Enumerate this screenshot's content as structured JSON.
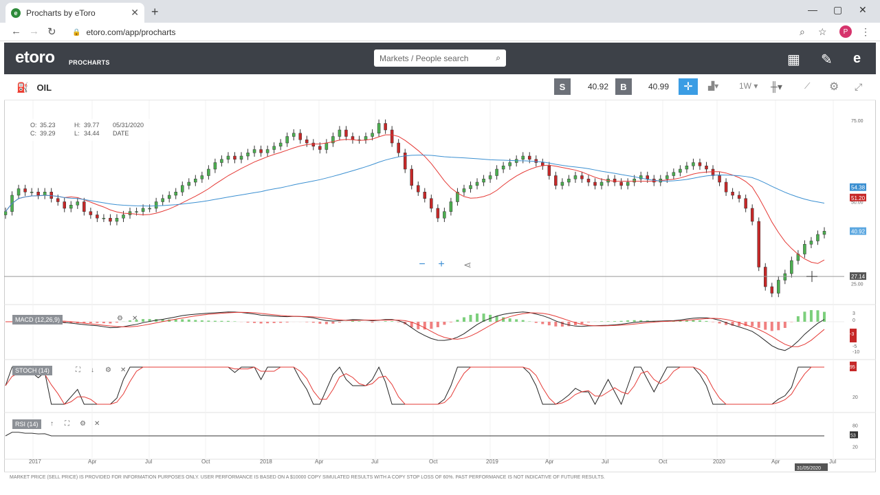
{
  "browser": {
    "tab_title": "Procharts by eToro",
    "url": "etoro.com/app/procharts",
    "avatar_letter": "P"
  },
  "app": {
    "logo": "etoro",
    "logo_sub": "PROCHARTS",
    "search_placeholder": "Markets / People search"
  },
  "toolbar": {
    "instrument": "OIL",
    "sell_label": "S",
    "sell_price": "40.92",
    "buy_label": "B",
    "buy_price": "40.99",
    "timeframe": "1W"
  },
  "ohlc": {
    "o_label": "O:",
    "o": "35.23",
    "h_label": "H:",
    "h": "39.77",
    "date": "05/31/2020",
    "c_label": "C:",
    "c": "39.29",
    "l_label": "L:",
    "l": "34.44",
    "date_label": "DATE"
  },
  "price_axis": {
    "ticks": [
      "75.00",
      "50.00",
      "25.00"
    ],
    "tag_blue": "54.38",
    "tag_red": "51.20",
    "tag_sell": "40.92",
    "tag_cursor": "27.14"
  },
  "indicators": {
    "macd": "MACD (12,26,9)",
    "macd_ticks": [
      "3",
      "0",
      "-5",
      "-10"
    ],
    "macd_tag": "-3",
    "stoch": "STOCH (14)",
    "stoch_ticks": [
      "20"
    ],
    "stoch_tag": "95",
    "rsi": "RSI (14)",
    "rsi_ticks": [
      "80",
      "20"
    ],
    "rsi_tag": "53"
  },
  "time_axis": {
    "labels": [
      "2017",
      "Apr",
      "Jul",
      "Oct",
      "2018",
      "Apr",
      "Jul",
      "Oct",
      "2019",
      "Apr",
      "Jul",
      "Oct",
      "2020",
      "Apr",
      "Jul"
    ],
    "cursor_date": "31/05/2020"
  },
  "footer": "MARKET PRICE (SELL PRICE) IS PROVIDED FOR INFORMATION PURPOSES ONLY. USER PERFORMANCE IS BASED ON A $10000 COPY SIMULATED RESULTS WITH A COPY STOP LOSS OF 60%. PAST PERFORMANCE IS NOT INDICATIVE OF FUTURE RESULTS.",
  "colors": {
    "up": "#4caf50",
    "down": "#c62828",
    "ma_red": "#e53935",
    "ma_blue": "#3a8fd1",
    "accent": "#3b9de4"
  },
  "chart_data": {
    "type": "candlestick",
    "instrument": "OIL",
    "interval": "1W",
    "ylim": [
      20,
      80
    ],
    "x_range": [
      "2016-11",
      "2020-07"
    ],
    "closes": [
      47,
      52,
      54,
      53,
      53,
      52,
      53,
      51,
      50,
      48,
      49,
      50,
      47,
      46,
      45,
      45,
      44,
      45,
      46,
      47,
      47,
      48,
      48,
      50,
      51,
      52,
      53,
      55,
      56,
      57,
      58,
      60,
      62,
      63,
      64,
      63,
      64,
      65,
      66,
      65,
      66,
      67,
      68,
      70,
      71,
      69,
      68,
      67,
      66,
      68,
      70,
      72,
      70,
      69,
      69,
      70,
      71,
      74,
      72,
      68,
      65,
      60,
      55,
      53,
      51,
      48,
      45,
      47,
      50,
      53,
      54,
      55,
      56,
      57,
      58,
      60,
      61,
      62,
      63,
      64,
      63,
      62,
      61,
      58,
      55,
      56,
      57,
      58,
      57,
      56,
      55,
      56,
      57,
      56,
      55,
      56,
      57,
      58,
      57,
      56,
      57,
      58,
      59,
      60,
      61,
      62,
      61,
      60,
      58,
      56,
      53,
      52,
      51,
      48,
      44,
      30,
      24,
      22,
      26,
      28,
      32,
      34,
      37,
      38,
      40,
      41
    ]
  }
}
